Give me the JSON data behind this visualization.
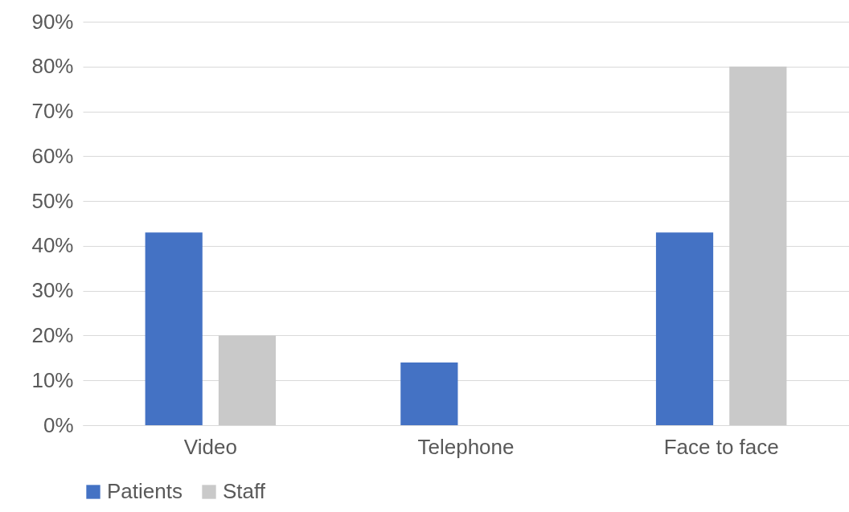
{
  "chart_data": {
    "type": "bar",
    "categories": [
      "Video",
      "Telephone",
      "Face to face"
    ],
    "series": [
      {
        "name": "Patients",
        "color": "#4472c4",
        "values": [
          43,
          14,
          43
        ]
      },
      {
        "name": "Staff",
        "color": "#c9c9c9",
        "values": [
          20,
          0,
          80
        ]
      }
    ],
    "ylim": [
      0,
      90
    ],
    "yticks": [
      {
        "value": 0,
        "label": "0%"
      },
      {
        "value": 10,
        "label": "10%"
      },
      {
        "value": 20,
        "label": "20%"
      },
      {
        "value": 30,
        "label": "30%"
      },
      {
        "value": 40,
        "label": "40%"
      },
      {
        "value": 50,
        "label": "50%"
      },
      {
        "value": 60,
        "label": "60%"
      },
      {
        "value": 70,
        "label": "70%"
      },
      {
        "value": 80,
        "label": "80%"
      },
      {
        "value": 90,
        "label": "90%"
      }
    ],
    "grid": "y",
    "legend": "bottom"
  }
}
